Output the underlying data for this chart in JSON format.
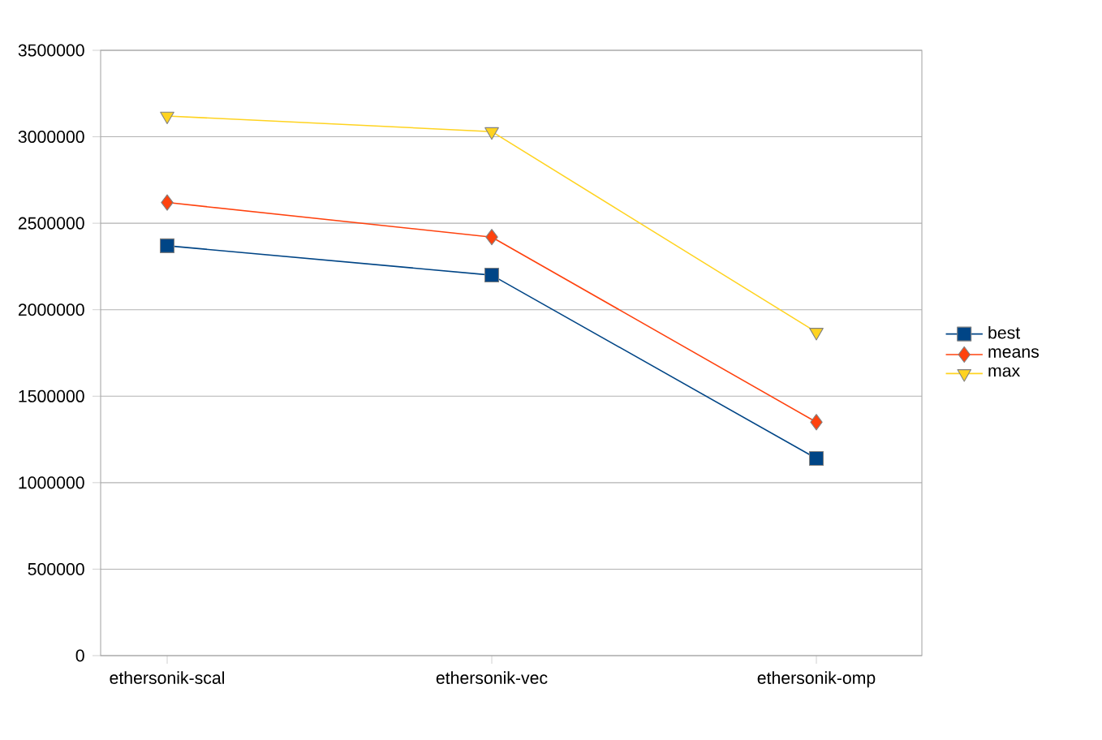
{
  "chart_data": {
    "type": "line",
    "categories": [
      "ethersonik-scal",
      "ethersonik-vec",
      "ethersonik-omp"
    ],
    "series": [
      {
        "name": "best",
        "color": "#004586",
        "marker": "square",
        "values": [
          2370000,
          2200000,
          1140000
        ]
      },
      {
        "name": "means",
        "color": "#ff420e",
        "marker": "diamond",
        "values": [
          2620000,
          2420000,
          1350000
        ]
      },
      {
        "name": "max",
        "color": "#ffd320",
        "marker": "triangle",
        "values": [
          3120000,
          3030000,
          1870000
        ]
      }
    ],
    "ylim": [
      0,
      3500000
    ],
    "yticks": [
      0,
      500000,
      1000000,
      1500000,
      2000000,
      2500000,
      3000000,
      3500000
    ],
    "grid": "y",
    "legend": "right",
    "line_style": "solid"
  }
}
